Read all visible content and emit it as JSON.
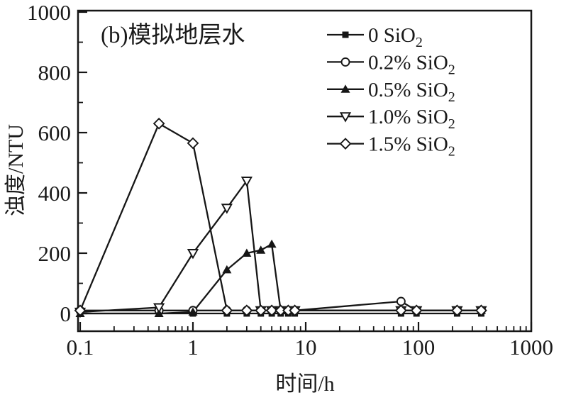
{
  "colors": {
    "line": "#161616",
    "background": "#ffffff",
    "text": "#1a1a1a"
  },
  "chart_data": {
    "type": "line",
    "title": "(b)模拟地层水",
    "xlabel": "时间/h",
    "ylabel": "浊度/NTU",
    "x_scale": "log",
    "xlim": [
      0.1,
      1000
    ],
    "ylim": [
      0,
      1000
    ],
    "x_tick_labels": [
      "0.1",
      "1",
      "10",
      "100",
      "1000"
    ],
    "x_ticks": [
      0.1,
      1,
      10,
      100,
      1000
    ],
    "y_ticks": [
      0,
      200,
      400,
      600,
      800,
      1000
    ],
    "grid": false,
    "legend_position": "inside-top-right",
    "x": [
      0.1,
      0.5,
      1,
      2,
      3,
      4,
      5,
      6,
      7,
      8,
      70,
      96,
      220,
      360
    ],
    "series": [
      {
        "name": "0 SiO2",
        "legend": {
          "prefix": "0 SiO",
          "sub": "2"
        },
        "marker": "square-filled",
        "values": [
          0,
          0,
          0,
          0,
          0,
          0,
          0,
          0,
          0,
          0,
          0,
          0,
          0,
          0
        ]
      },
      {
        "name": "0.2% SiO2",
        "legend": {
          "prefix": "0.2% SiO",
          "sub": "2"
        },
        "marker": "circle-open",
        "values": [
          10,
          10,
          10,
          10,
          10,
          10,
          10,
          10,
          10,
          10,
          40,
          10,
          10,
          10
        ]
      },
      {
        "name": "0.5% SiO2",
        "legend": {
          "prefix": "0.5% SiO",
          "sub": "2"
        },
        "marker": "triangle-filled",
        "values": [
          0,
          0,
          5,
          145,
          200,
          210,
          230,
          10,
          10,
          10,
          10,
          10,
          10,
          10
        ]
      },
      {
        "name": "1.0% SiO2",
        "legend": {
          "prefix": "1.0% SiO",
          "sub": "2"
        },
        "marker": "triangle-down-open",
        "values": [
          5,
          20,
          200,
          350,
          440,
          10,
          10,
          10,
          10,
          10,
          10,
          10,
          10,
          10
        ]
      },
      {
        "name": "1.5% SiO2",
        "legend": {
          "prefix": "1.5% SiO",
          "sub": "2"
        },
        "marker": "diamond-open",
        "values": [
          10,
          630,
          565,
          10,
          10,
          10,
          10,
          10,
          10,
          10,
          10,
          10,
          10,
          10
        ]
      }
    ]
  }
}
